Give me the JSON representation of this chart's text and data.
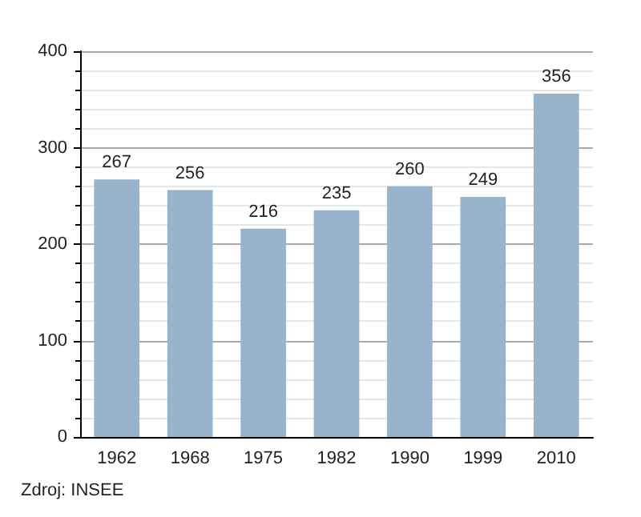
{
  "chart_data": {
    "type": "bar",
    "categories": [
      "1962",
      "1968",
      "1975",
      "1982",
      "1990",
      "1999",
      "2010"
    ],
    "values": [
      267,
      256,
      216,
      235,
      260,
      249,
      356
    ],
    "color": "#98b3cc",
    "ylim": [
      0,
      400
    ],
    "yticks": [
      0,
      100,
      200,
      300,
      400
    ],
    "grid": "y",
    "data_labels": true,
    "annotations": [
      "Zdroj: INSEE"
    ]
  }
}
